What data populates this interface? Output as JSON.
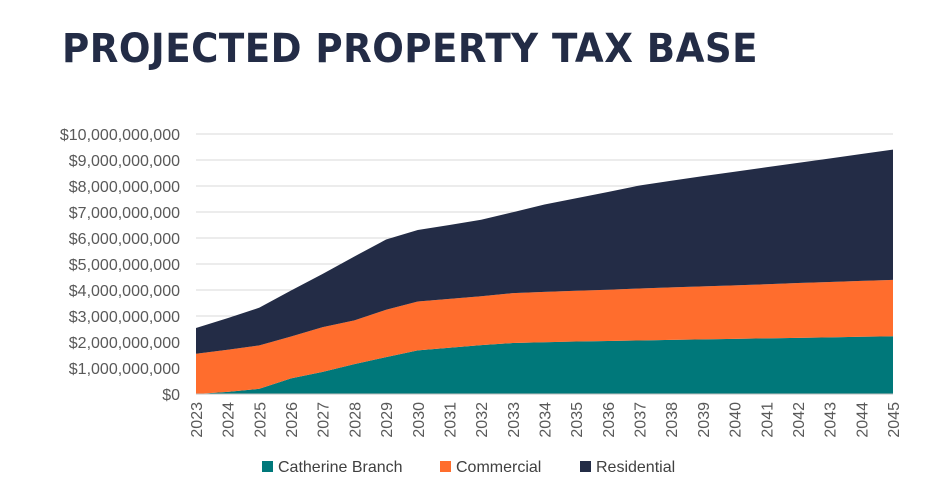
{
  "chart_data": {
    "type": "area",
    "stacked": true,
    "title": "PROJECTED PROPERTY TAX BASE",
    "xlabel": "",
    "ylabel": "",
    "value_unit": "billions USD",
    "ylim": [
      0,
      10
    ],
    "y_ticks": [
      {
        "value": 0,
        "label": "$0"
      },
      {
        "value": 1,
        "label": "$1,000,000,000"
      },
      {
        "value": 2,
        "label": "$2,000,000,000"
      },
      {
        "value": 3,
        "label": "$3,000,000,000"
      },
      {
        "value": 4,
        "label": "$4,000,000,000"
      },
      {
        "value": 5,
        "label": "$5,000,000,000"
      },
      {
        "value": 6,
        "label": "$6,000,000,000"
      },
      {
        "value": 7,
        "label": "$7,000,000,000"
      },
      {
        "value": 8,
        "label": "$8,000,000,000"
      },
      {
        "value": 9,
        "label": "$9,000,000,000"
      },
      {
        "value": 10,
        "label": "$10,000,000,000"
      }
    ],
    "grid": true,
    "legend_position": "bottom",
    "categories": [
      "2023",
      "2024",
      "2025",
      "2026",
      "2027",
      "2028",
      "2029",
      "2030",
      "2031",
      "2032",
      "2033",
      "2034",
      "2035",
      "2036",
      "2037",
      "2038",
      "2039",
      "2040",
      "2041",
      "2042",
      "2043",
      "2044",
      "2045"
    ],
    "series": [
      {
        "name": "Catherine Branch",
        "color": "#00787a",
        "values": [
          0,
          0.08,
          0.2,
          0.6,
          0.85,
          1.15,
          1.42,
          1.68,
          1.78,
          1.88,
          1.96,
          1.99,
          2.02,
          2.04,
          2.06,
          2.08,
          2.1,
          2.12,
          2.14,
          2.16,
          2.18,
          2.2,
          2.22
        ]
      },
      {
        "name": "Commercial",
        "color": "#ff6d2d",
        "values": [
          1.55,
          1.62,
          1.67,
          1.61,
          1.72,
          1.68,
          1.82,
          1.88,
          1.88,
          1.88,
          1.92,
          1.94,
          1.95,
          1.97,
          2.0,
          2.02,
          2.04,
          2.06,
          2.08,
          2.11,
          2.13,
          2.15,
          2.17
        ]
      },
      {
        "name": "Residential",
        "color": "#232c46",
        "values": [
          0.99,
          1.22,
          1.45,
          1.77,
          2.05,
          2.46,
          2.7,
          2.75,
          2.84,
          2.94,
          3.11,
          3.36,
          3.56,
          3.76,
          3.96,
          4.1,
          4.24,
          4.37,
          4.5,
          4.62,
          4.75,
          4.88,
          5.01
        ]
      }
    ]
  }
}
